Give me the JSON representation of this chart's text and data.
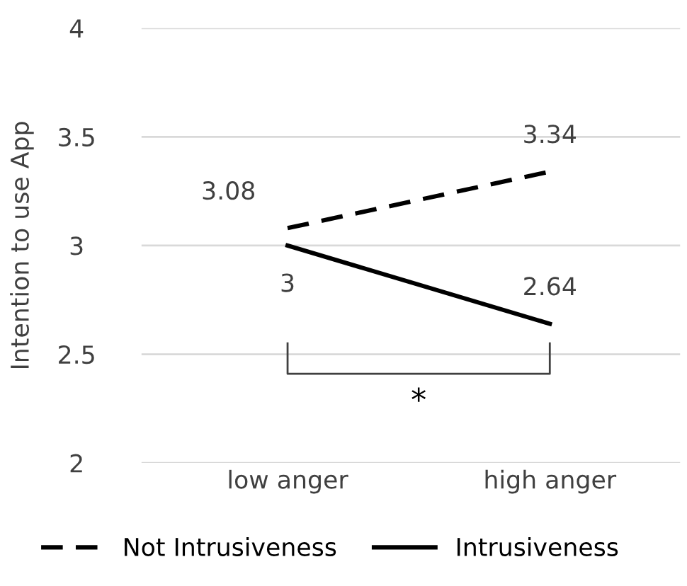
{
  "chart_data": {
    "type": "line",
    "ylabel": "Intention to use App",
    "categories": [
      "low anger",
      "high anger"
    ],
    "series": [
      {
        "name": "Not Intrusiveness",
        "color": "#000000",
        "line_style": "dashed",
        "values": [
          3.08,
          3.34
        ]
      },
      {
        "name": "Intrusiveness",
        "color": "#000000",
        "line_style": "solid",
        "values": [
          3,
          2.64
        ]
      }
    ],
    "ylim": [
      2,
      4
    ],
    "yticks": [
      2,
      2.5,
      3,
      3.5,
      4
    ],
    "grid": "y",
    "legend": "bottom",
    "data_labels": true,
    "marker": "none",
    "annotations": [
      "*"
    ]
  }
}
